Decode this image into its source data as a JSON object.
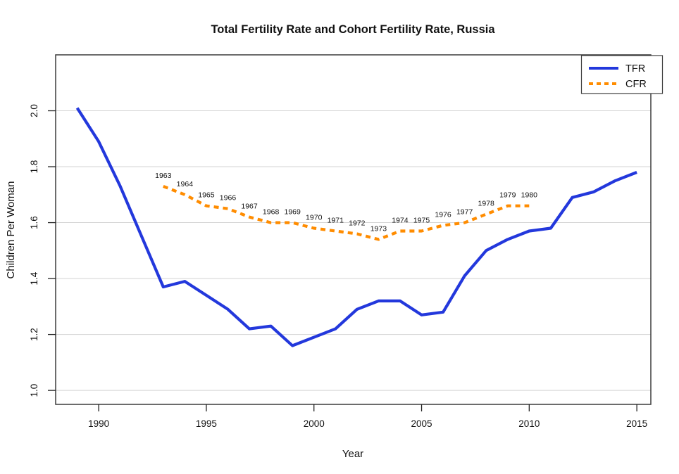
{
  "chart_data": {
    "type": "line",
    "title": "Total Fertility Rate and Cohort Fertility Rate, Russia",
    "xlabel": "Year",
    "ylabel": "Children Per Woman",
    "x_ticks": [
      1990,
      1995,
      2000,
      2005,
      2010,
      2015
    ],
    "y_ticks": [
      1.0,
      1.2,
      1.4,
      1.6,
      1.8,
      2.0
    ],
    "xlim": [
      1988.0,
      2015.65
    ],
    "ylim": [
      0.95,
      2.2
    ],
    "grid": "horizontal",
    "grid_color": "#d3d3d3",
    "legend_position": "topright",
    "series": [
      {
        "name": "TFR",
        "color": "#2338dc",
        "line_style": "solid",
        "x": [
          1989,
          1990,
          1991,
          1992,
          1993,
          1994,
          1995,
          1996,
          1997,
          1998,
          1999,
          2000,
          2001,
          2002,
          2003,
          2004,
          2005,
          2006,
          2007,
          2008,
          2009,
          2010,
          2011,
          2012,
          2013,
          2014,
          2015
        ],
        "values": [
          2.01,
          1.89,
          1.73,
          1.55,
          1.37,
          1.39,
          1.34,
          1.29,
          1.22,
          1.23,
          1.16,
          1.19,
          1.22,
          1.29,
          1.32,
          1.32,
          1.27,
          1.28,
          1.41,
          1.5,
          1.54,
          1.57,
          1.58,
          1.69,
          1.71,
          1.75,
          1.78
        ]
      },
      {
        "name": "CFR",
        "color": "#ff8c00",
        "line_style": "dashed",
        "x": [
          1993,
          1994,
          1995,
          1996,
          1997,
          1998,
          1999,
          2000,
          2001,
          2002,
          2003,
          2004,
          2005,
          2006,
          2007,
          2008,
          2009,
          2010
        ],
        "values": [
          1.73,
          1.7,
          1.66,
          1.65,
          1.62,
          1.6,
          1.6,
          1.58,
          1.57,
          1.56,
          1.54,
          1.57,
          1.57,
          1.59,
          1.6,
          1.63,
          1.66,
          1.66
        ],
        "point_labels": [
          "1963",
          "1964",
          "1965",
          "1966",
          "1967",
          "1968",
          "1969",
          "1970",
          "1971",
          "1972",
          "1973",
          "1974",
          "1975",
          "1976",
          "1977",
          "1978",
          "1979",
          "1980"
        ]
      }
    ]
  }
}
